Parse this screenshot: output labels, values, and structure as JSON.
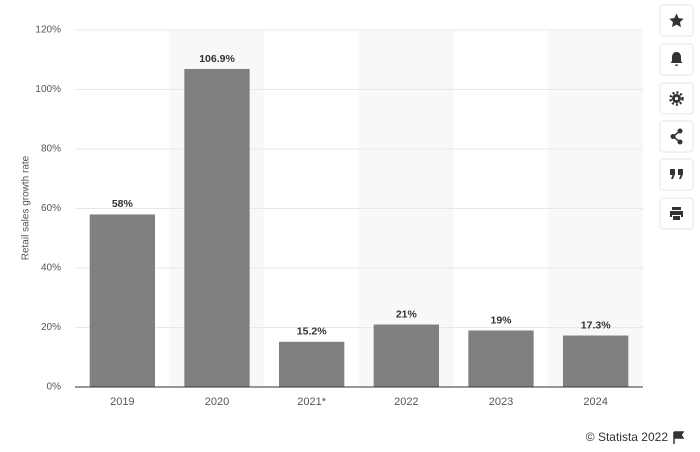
{
  "chart_data": {
    "type": "bar",
    "y_label": "Retail sales growth rate",
    "categories": [
      "2019",
      "2020",
      "2021*",
      "2022",
      "2023",
      "2024"
    ],
    "values": [
      58,
      106.9,
      15.2,
      21,
      19,
      17.3
    ],
    "value_labels": [
      "58%",
      "106.9%",
      "15.2%",
      "21%",
      "19%",
      "17.3%"
    ],
    "color": "#808080",
    "ylim": [
      0,
      120
    ],
    "yticks": [
      {
        "value": 0,
        "label": "0%"
      },
      {
        "value": 20,
        "label": "20%"
      },
      {
        "value": 40,
        "label": "40%"
      },
      {
        "value": 60,
        "label": "60%"
      },
      {
        "value": 80,
        "label": "80%"
      },
      {
        "value": 100,
        "label": "100%"
      },
      {
        "value": 120,
        "label": "120%"
      }
    ],
    "grid": true,
    "source": "© Statista 2022"
  }
}
